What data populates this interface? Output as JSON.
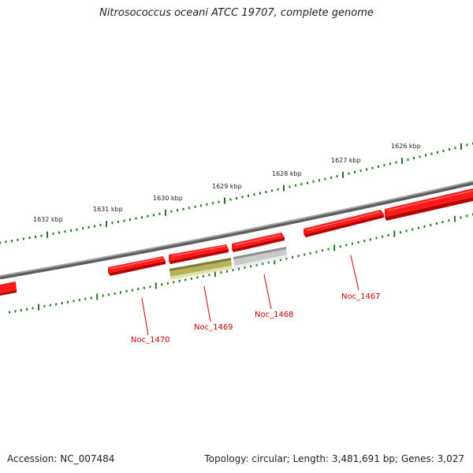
{
  "title": "Nitrosococcus oceani ATCC 19707, complete genome",
  "footer": {
    "accession": "Accession: NC_007484",
    "summary": "Topology: circular; Length: 3,481,691 bp; Genes: 3,027"
  },
  "scale": {
    "tick_labels": [
      "1626 kbp",
      "1627 kbp",
      "1628 kbp",
      "1629 kbp",
      "1630 kbp",
      "1631 kbp",
      "1632 kbp"
    ]
  },
  "genes": [
    {
      "label": "Noc_1467",
      "strand": "+",
      "color": "#ee1111"
    },
    {
      "label": "Noc_1468",
      "strand": "+",
      "color": "#ee1111"
    },
    {
      "label": "Noc_1469",
      "strand": "+",
      "color": "#ee1111"
    },
    {
      "label": "Noc_1470",
      "strand": "+",
      "color": "#ee1111"
    }
  ],
  "features": [
    {
      "type": "gene",
      "color": "#ee1111"
    },
    {
      "type": "RNA/other",
      "color": "#bdb96a"
    },
    {
      "type": "pseudo",
      "color": "#c8c8c8"
    }
  ],
  "colors": {
    "backbone": "#808080",
    "tick": "#1f7a1f",
    "gene_label": "#cc0000"
  }
}
